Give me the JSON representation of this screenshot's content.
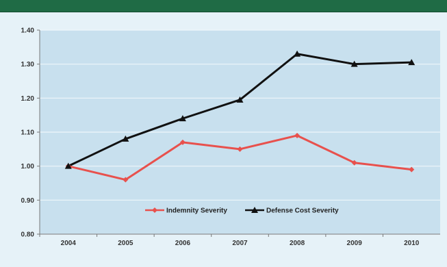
{
  "header": {
    "title": ""
  },
  "chart_data": {
    "type": "line",
    "categories": [
      "2004",
      "2005",
      "2006",
      "2007",
      "2008",
      "2009",
      "2010"
    ],
    "series": [
      {
        "name": "Indemnity Severity",
        "values": [
          1.0,
          0.96,
          1.07,
          1.05,
          1.09,
          1.01,
          0.99
        ],
        "color": "#e8514d",
        "marker": "diamond"
      },
      {
        "name": "Defense Cost Severity",
        "values": [
          1.0,
          1.08,
          1.14,
          1.195,
          1.33,
          1.3,
          1.305
        ],
        "color": "#111111",
        "marker": "triangle"
      }
    ],
    "y_ticks": [
      "1.40",
      "1.30",
      "1.20",
      "1.10",
      "1.00",
      "0.90",
      "0.80"
    ],
    "ylim": [
      0.8,
      1.4
    ],
    "grid": true,
    "legend_position": "bottom-center"
  }
}
